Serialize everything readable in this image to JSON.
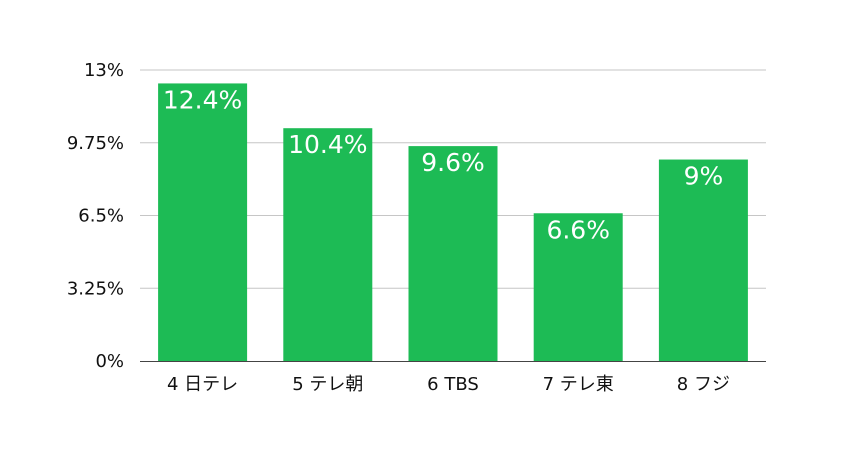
{
  "chart_data": {
    "type": "bar",
    "categories": [
      "4 日テレ",
      "5 テレ朝",
      "6 TBS",
      "7 テレ東",
      "8 フジ"
    ],
    "values": [
      12.4,
      10.4,
      9.6,
      6.6,
      9
    ],
    "data_labels": [
      "12.4%",
      "10.4%",
      "9.6%",
      "6.6%",
      "9%"
    ],
    "title": "",
    "xlabel": "",
    "ylabel": "",
    "ylim": [
      0,
      13
    ],
    "yticks": [
      0,
      3.25,
      6.5,
      9.75,
      13
    ],
    "ytick_labels": [
      "0%",
      "3.25%",
      "6.5%",
      "9.75%",
      "13%"
    ],
    "grid": true,
    "legend": "none",
    "colors": {
      "bar": "#1dbb55",
      "grid": "#c6c6c6",
      "axis": "#444444",
      "data_label": "#ffffff",
      "text": "#111111"
    }
  }
}
